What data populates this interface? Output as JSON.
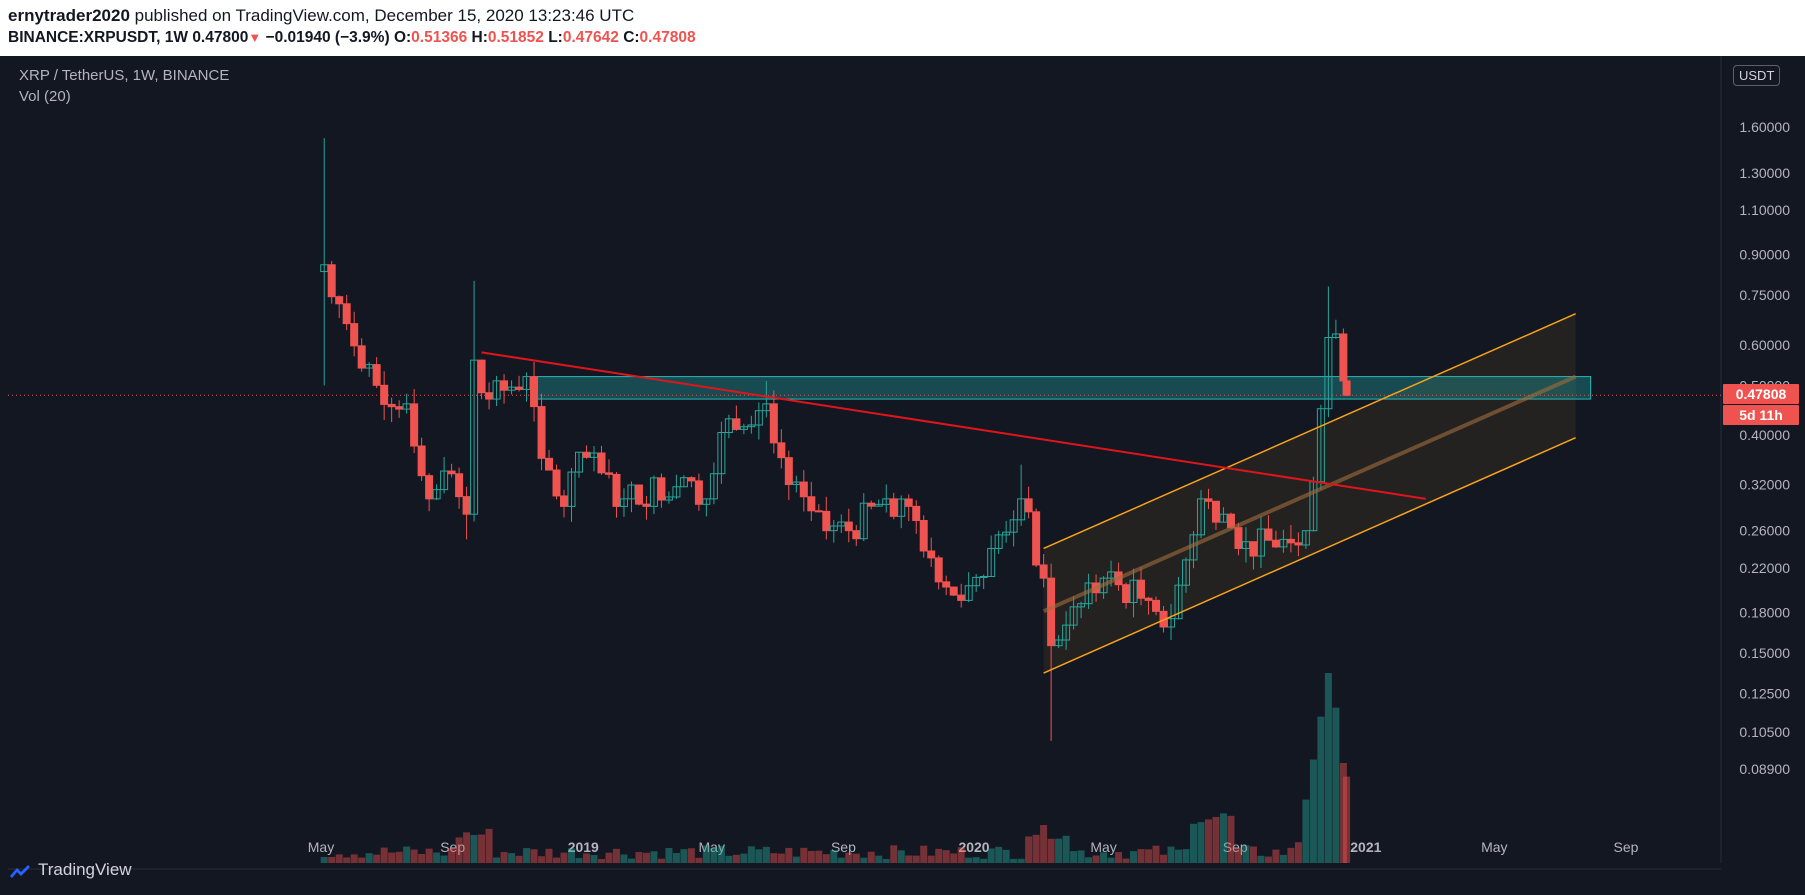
{
  "header": {
    "author": "ernytrader2020",
    "publish_text": " published on TradingView.com, December 15, 2020 13:23:46 UTC",
    "symbol": "BINANCE:XRPUSDT",
    "interval": "1W",
    "last": "0.47800",
    "change": "−0.01940 (−3.9%)",
    "o_label": "O:",
    "o_value": "0.51366",
    "h_label": "H:",
    "h_value": "0.51852",
    "l_label": "L:",
    "l_value": "0.47642",
    "c_label": "C:",
    "c_value": "0.47808"
  },
  "legend": {
    "symbol_line": "XRP / TetherUS, 1W, BINANCE",
    "volume_line": "Vol (20)"
  },
  "price_scale": {
    "currency": "USDT",
    "current_price": "0.47808",
    "countdown": "5d 11h"
  },
  "footer": {
    "brand": "TradingView"
  },
  "colors": {
    "background": "#131722",
    "up": "#26a69a",
    "down": "#ef5350",
    "trendline": "#e0151b",
    "channel": "#f7a21b",
    "zone": "#1e8c8c"
  },
  "chart_data": {
    "type": "candlestick",
    "title": "XRP / TetherUS, 1W, BINANCE",
    "xlabel": "",
    "ylabel": "",
    "y_scale": "log",
    "ylim": [
      0.073,
      2.2
    ],
    "grid": false,
    "x_ticks": [
      {
        "label": "May",
        "date": "2018-05-01"
      },
      {
        "label": "Sep",
        "date": "2018-09-01"
      },
      {
        "label": "2019",
        "date": "2019-01-01"
      },
      {
        "label": "May",
        "date": "2019-05-01"
      },
      {
        "label": "Sep",
        "date": "2019-09-01"
      },
      {
        "label": "2020",
        "date": "2020-01-01"
      },
      {
        "label": "May",
        "date": "2020-05-01"
      },
      {
        "label": "Sep",
        "date": "2020-09-01"
      },
      {
        "label": "2021",
        "date": "2021-01-01"
      },
      {
        "label": "May",
        "date": "2021-05-01"
      },
      {
        "label": "Sep",
        "date": "2021-09-01"
      }
    ],
    "y_ticks": [
      "1.60000",
      "1.30000",
      "1.10000",
      "0.90000",
      "0.75000",
      "0.60000",
      "0.50000",
      "0.40000",
      "0.32000",
      "0.26000",
      "0.22000",
      "0.18000",
      "0.15000",
      "0.12500",
      "0.10500",
      "0.08900"
    ],
    "close_anchors": [
      {
        "date": "2018-05-04",
        "close": 0.86,
        "high": 1.52,
        "low": 0.5
      },
      {
        "date": "2018-05-25",
        "close": 0.66
      },
      {
        "date": "2018-06-22",
        "close": 0.5
      },
      {
        "date": "2018-07-20",
        "close": 0.46
      },
      {
        "date": "2018-08-10",
        "close": 0.3
      },
      {
        "date": "2018-08-24",
        "close": 0.34
      },
      {
        "date": "2018-09-14",
        "close": 0.28,
        "low": 0.25
      },
      {
        "date": "2018-09-21",
        "close": 0.56,
        "high": 0.8
      },
      {
        "date": "2018-10-05",
        "close": 0.47
      },
      {
        "date": "2018-11-09",
        "close": 0.52
      },
      {
        "date": "2018-11-23",
        "close": 0.36
      },
      {
        "date": "2018-12-14",
        "close": 0.29
      },
      {
        "date": "2018-12-28",
        "close": 0.37
      },
      {
        "date": "2019-02-08",
        "close": 0.3
      },
      {
        "date": "2019-04-05",
        "close": 0.33
      },
      {
        "date": "2019-04-26",
        "close": 0.3
      },
      {
        "date": "2019-05-17",
        "close": 0.43
      },
      {
        "date": "2019-06-21",
        "close": 0.46,
        "high": 0.51
      },
      {
        "date": "2019-07-12",
        "close": 0.32
      },
      {
        "date": "2019-08-16",
        "close": 0.26
      },
      {
        "date": "2019-09-06",
        "close": 0.26
      },
      {
        "date": "2019-10-11",
        "close": 0.3
      },
      {
        "date": "2019-11-01",
        "close": 0.29
      },
      {
        "date": "2019-11-22",
        "close": 0.23
      },
      {
        "date": "2019-12-20",
        "close": 0.19
      },
      {
        "date": "2020-01-17",
        "close": 0.24
      },
      {
        "date": "2020-02-14",
        "close": 0.3,
        "high": 0.35
      },
      {
        "date": "2020-03-06",
        "close": 0.21
      },
      {
        "date": "2020-03-13",
        "close": 0.155,
        "low": 0.101
      },
      {
        "date": "2020-03-27",
        "close": 0.17
      },
      {
        "date": "2020-05-01",
        "close": 0.21
      },
      {
        "date": "2020-06-12",
        "close": 0.19
      },
      {
        "date": "2020-07-03",
        "close": 0.175
      },
      {
        "date": "2020-07-31",
        "close": 0.3
      },
      {
        "date": "2020-08-21",
        "close": 0.28
      },
      {
        "date": "2020-09-04",
        "close": 0.24
      },
      {
        "date": "2020-10-16",
        "close": 0.25
      },
      {
        "date": "2020-11-06",
        "close": 0.26
      },
      {
        "date": "2020-11-20",
        "close": 0.45
      },
      {
        "date": "2020-11-27",
        "close": 0.62,
        "high": 0.78
      },
      {
        "date": "2020-12-04",
        "close": 0.63
      },
      {
        "date": "2020-12-11",
        "close": 0.51
      },
      {
        "date": "2020-12-14",
        "close": 0.47808,
        "high": 0.51852,
        "low": 0.47642
      }
    ],
    "volume_peak_date": "2020-11-27",
    "annotations": {
      "trendline": {
        "start": {
          "date": "2018-09-28",
          "price": 0.58
        },
        "end": {
          "date": "2021-02-26",
          "price": 0.3
        }
      },
      "zone": {
        "start": "2018-11-16",
        "end": "2021-07-30",
        "high": 0.52,
        "low": 0.47
      },
      "channel": {
        "upper": {
          "start": {
            "date": "2020-03-06",
            "price": 0.24
          },
          "end": {
            "date": "2021-07-16",
            "price": 0.69
          }
        },
        "lower": {
          "start": {
            "date": "2020-03-06",
            "price": 0.137
          },
          "end": {
            "date": "2021-07-16",
            "price": 0.395
          }
        },
        "middle": {
          "start": {
            "date": "2020-03-06",
            "price": 0.181
          },
          "end": {
            "date": "2021-07-16",
            "price": 0.52
          }
        }
      }
    }
  }
}
